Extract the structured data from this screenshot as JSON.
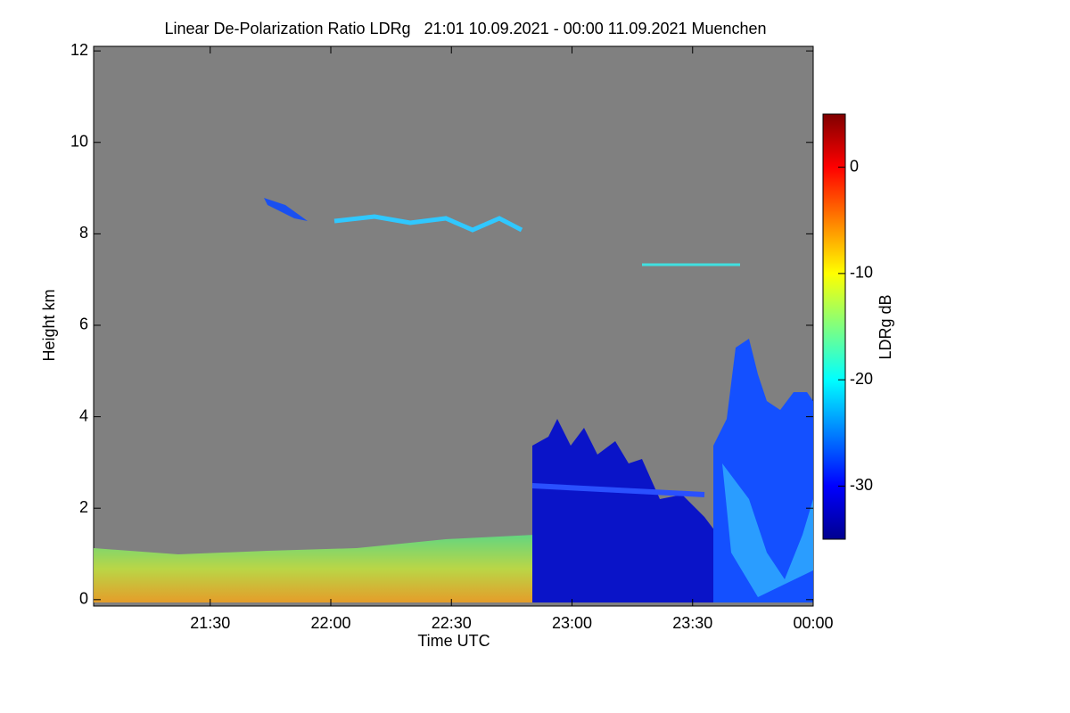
{
  "chart_data": {
    "type": "heatmap",
    "title": "Linear De-Polarization Ratio LDRg   21:01 10.09.2021 - 00:00 11.09.2021 Muenchen",
    "xlabel": "Time UTC",
    "ylabel": "Height km",
    "xlim": [
      1,
      180
    ],
    "xticks": [
      {
        "value": 30,
        "label": "21:30"
      },
      {
        "value": 60,
        "label": "22:00"
      },
      {
        "value": 90,
        "label": "22:30"
      },
      {
        "value": 120,
        "label": "23:00"
      },
      {
        "value": 150,
        "label": "23:30"
      },
      {
        "value": 180,
        "label": "00:00"
      }
    ],
    "ylim": [
      -0.14,
      12.1
    ],
    "yticks": [
      0,
      2,
      4,
      6,
      8,
      10,
      12
    ],
    "colorbar": {
      "label": "LDRg dB",
      "lim": [
        -35,
        5
      ],
      "ticks": [
        0,
        -10,
        -20,
        -30
      ],
      "colormap": "jet"
    },
    "background": "#808080"
  }
}
